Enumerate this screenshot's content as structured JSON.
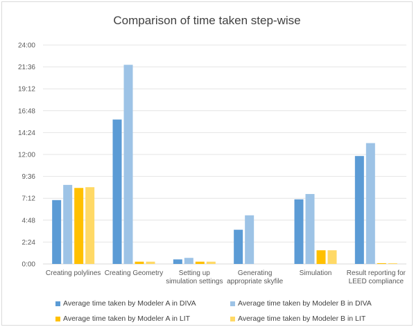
{
  "chart_data": {
    "type": "bar",
    "title": "Comparison of time taken step-wise",
    "xlabel": "",
    "ylabel": "",
    "y_unit": "minutes (axis labelled as m:ss)",
    "ylim": [
      0,
      1440
    ],
    "y_ticks": [
      "0:00",
      "2:24",
      "4:48",
      "7:12",
      "9:36",
      "12:00",
      "14:24",
      "16:48",
      "19:12",
      "21:36",
      "24:00"
    ],
    "grid": true,
    "legend_position": "bottom",
    "categories": [
      [
        "Creating polylines"
      ],
      [
        "Creating Geometry"
      ],
      [
        "Setting up",
        "simulation settings"
      ],
      [
        "Generating",
        "appropriate skyfile"
      ],
      [
        "Simulation"
      ],
      [
        "Result reporting for",
        "LEED compliance"
      ]
    ],
    "series": [
      {
        "name": "Average time taken by Modeler A in DIVA",
        "color": "#5b9bd5",
        "values": [
          420,
          950,
          30,
          225,
          425,
          710
        ]
      },
      {
        "name": "Average time taken by Modeler B in DIVA",
        "color": "#9dc3e6",
        "values": [
          520,
          1310,
          40,
          320,
          460,
          795
        ]
      },
      {
        "name": "Average time taken by Modeler A in LIT",
        "color": "#ffc000",
        "values": [
          500,
          15,
          15,
          0,
          90,
          5
        ]
      },
      {
        "name": "Average time taken by Modeler B in LIT",
        "color": "#ffd966",
        "values": [
          505,
          15,
          15,
          0,
          90,
          5
        ]
      }
    ]
  }
}
